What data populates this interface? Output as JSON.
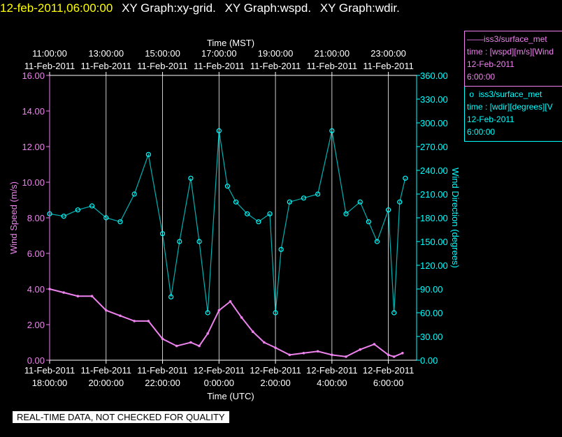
{
  "header": {
    "timestamp": "12-feb-2011,06:00:00",
    "graphs": [
      "XY Graph:xy-grid.",
      "XY Graph:wspd.",
      "XY Graph:wdir."
    ]
  },
  "legend": [
    {
      "line1": "iss3/surface_met",
      "line2": "time : [wspd][m/s][Wind",
      "line3": "12-Feb-2011",
      "line4": "6:00:00",
      "color": "#ee82ee"
    },
    {
      "line1": "iss3/surface_met",
      "line2": "time : [wdir][degrees][V",
      "line3": "12-Feb-2011",
      "line4": "6:00:00",
      "color": "#00ffff"
    }
  ],
  "banner": "REAL-TIME DATA, NOT CHECKED FOR QUALITY",
  "chart_data": {
    "type": "line",
    "x_top_label": "Time (MST)",
    "x_bottom_label": "Time (UTC)",
    "y_left_label": "Wind Speed (m/s)",
    "y_right_label": "Wind Direction (degrees)",
    "y_left_range": [
      0,
      16
    ],
    "y_right_range": [
      0,
      360
    ],
    "x_range_utc_hours": [
      18,
      31
    ],
    "top_ticks": [
      {
        "h": 18,
        "time": "11:00:00",
        "date": "11-Feb-2011"
      },
      {
        "h": 20,
        "time": "13:00:00",
        "date": "11-Feb-2011"
      },
      {
        "h": 22,
        "time": "15:00:00",
        "date": "11-Feb-2011"
      },
      {
        "h": 24,
        "time": "17:00:00",
        "date": "11-Feb-2011"
      },
      {
        "h": 26,
        "time": "19:00:00",
        "date": "11-Feb-2011"
      },
      {
        "h": 28,
        "time": "21:00:00",
        "date": "11-Feb-2011"
      },
      {
        "h": 30,
        "time": "23:00:00",
        "date": "11-Feb-2011"
      }
    ],
    "bottom_ticks": [
      {
        "h": 18,
        "date": "11-Feb-2011",
        "time": "18:00:00"
      },
      {
        "h": 20,
        "date": "11-Feb-2011",
        "time": "20:00:00"
      },
      {
        "h": 22,
        "date": "11-Feb-2011",
        "time": "22:00:00"
      },
      {
        "h": 24,
        "date": "12-Feb-2011",
        "time": "0:00:00"
      },
      {
        "h": 26,
        "date": "12-Feb-2011",
        "time": "2:00:00"
      },
      {
        "h": 28,
        "date": "12-Feb-2011",
        "time": "4:00:00"
      },
      {
        "h": 30,
        "date": "12-Feb-2011",
        "time": "6:00:00"
      }
    ],
    "left_ticks": [
      "0.00",
      "2.00",
      "4.00",
      "6.00",
      "8.00",
      "10.00",
      "12.00",
      "14.00",
      "16.00"
    ],
    "right_ticks": [
      "0.00",
      "30.00",
      "60.00",
      "90.00",
      "120.00",
      "150.00",
      "180.00",
      "210.00",
      "240.00",
      "270.00",
      "300.00",
      "330.00",
      "360.00"
    ],
    "grid_hours": [
      20,
      22,
      24,
      26,
      28,
      30
    ],
    "series": [
      {
        "name": "iss3/surface_met wspd",
        "color": "#ee82ee",
        "axis": "left",
        "x": [
          18.0,
          18.5,
          19.0,
          19.5,
          20.0,
          20.5,
          21.0,
          21.5,
          22.0,
          22.5,
          23.0,
          23.3,
          23.6,
          24.0,
          24.4,
          24.8,
          25.2,
          25.6,
          26.0,
          26.5,
          27.0,
          27.5,
          28.0,
          28.5,
          29.0,
          29.5,
          30.0,
          30.2,
          30.5
        ],
        "y": [
          4.0,
          3.8,
          3.6,
          3.6,
          2.8,
          2.5,
          2.2,
          2.2,
          1.2,
          0.8,
          1.0,
          0.8,
          1.5,
          2.8,
          3.3,
          2.4,
          1.6,
          1.0,
          0.7,
          0.3,
          0.4,
          0.5,
          0.3,
          0.2,
          0.6,
          0.9,
          0.3,
          0.2,
          0.4
        ]
      },
      {
        "name": "iss3/surface_met wdir",
        "color": "#00ffff",
        "axis": "right",
        "x": [
          18.0,
          18.5,
          19.0,
          19.5,
          20.0,
          20.5,
          21.0,
          21.5,
          22.0,
          22.3,
          22.6,
          23.0,
          23.3,
          23.6,
          24.0,
          24.3,
          24.6,
          25.0,
          25.4,
          25.8,
          26.0,
          26.2,
          26.5,
          27.0,
          27.5,
          28.0,
          28.5,
          29.0,
          29.3,
          29.6,
          30.0,
          30.2,
          30.4,
          30.6
        ],
        "y": [
          185,
          182,
          190,
          195,
          180,
          175,
          210,
          260,
          160,
          80,
          150,
          230,
          150,
          60,
          290,
          220,
          200,
          185,
          175,
          185,
          60,
          140,
          200,
          205,
          210,
          290,
          185,
          200,
          175,
          150,
          190,
          60,
          200,
          230
        ]
      }
    ]
  }
}
